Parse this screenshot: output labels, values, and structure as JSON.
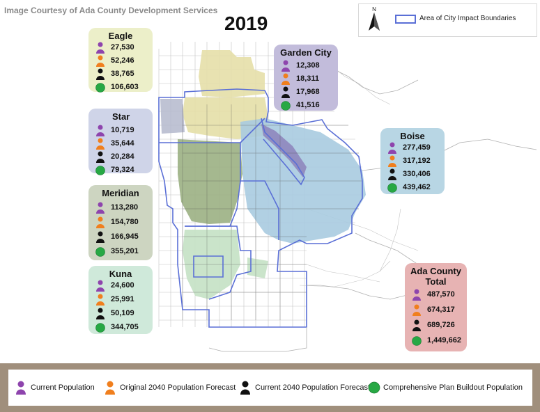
{
  "credit": "Image Courtesy of Ada County Development Services",
  "year": "2019",
  "legend_top": {
    "north": "N",
    "boundary_label": "Area of City Impact Boundaries"
  },
  "colors": {
    "current": "#8e44ad",
    "original": "#f07f1e",
    "forecast": "#111111",
    "buildout": "#27a844"
  },
  "cards": {
    "eagle": {
      "title": "Eagle",
      "current": "27,530",
      "original": "52,246",
      "forecast": "38,765",
      "buildout": "106,603"
    },
    "star": {
      "title": "Star",
      "current": "10,719",
      "original": "35,644",
      "forecast": "20,284",
      "buildout": "79,324"
    },
    "meridian": {
      "title": "Meridian",
      "current": "113,280",
      "original": "154,780",
      "forecast": "166,945",
      "buildout": "355,201"
    },
    "kuna": {
      "title": "Kuna",
      "current": "24,600",
      "original": "25,991",
      "forecast": "50,109",
      "buildout": "344,705"
    },
    "garden": {
      "title": "Garden City",
      "current": "12,308",
      "original": "18,311",
      "forecast": "17,968",
      "buildout": "41,516"
    },
    "boise": {
      "title": "Boise",
      "current": "277,459",
      "original": "317,192",
      "forecast": "330,406",
      "buildout": "439,462"
    },
    "ada": {
      "title_line1": "Ada County",
      "title_line2": "Total",
      "current": "487,570",
      "original": "674,317",
      "forecast": "689,726",
      "buildout": "1,449,662"
    }
  },
  "legend_bottom": {
    "current": "Current Population",
    "original": "Original 2040 Population Forecast",
    "forecast": "Current 2040 Population Forecast",
    "buildout": "Comprehensive Plan Buildout Population"
  }
}
